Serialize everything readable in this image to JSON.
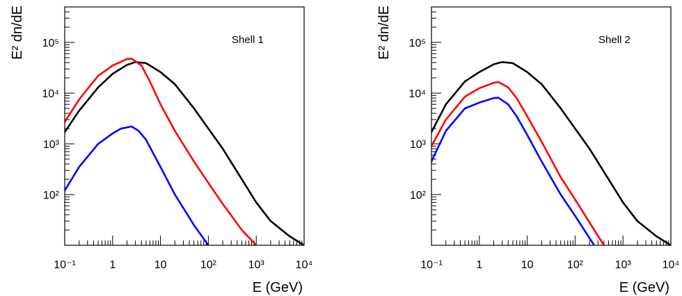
{
  "chart_data": [
    {
      "type": "line",
      "annotation": "Shell 1",
      "xlabel": "E (GeV)",
      "ylabel": "E² dn/dE",
      "xscale": "log",
      "yscale": "log",
      "xlim": [
        0.1,
        10000
      ],
      "ylim": [
        10,
        500000
      ],
      "x_tick_labels": [
        "10⁻¹",
        "1",
        "10",
        "10²",
        "10³",
        "10⁴"
      ],
      "y_tick_labels": [
        "10²",
        "10³",
        "10⁴",
        "10⁵"
      ],
      "series": [
        {
          "color": "#000000",
          "points": [
            [
              0.1,
              1700
            ],
            [
              0.2,
              4500
            ],
            [
              0.5,
              13000
            ],
            [
              1,
              24000
            ],
            [
              2,
              36000
            ],
            [
              3,
              41000
            ],
            [
              5,
              39000
            ],
            [
              10,
              26000
            ],
            [
              20,
              15000
            ],
            [
              50,
              5000
            ],
            [
              100,
              2000
            ],
            [
              200,
              800
            ],
            [
              500,
              200
            ],
            [
              1000,
              70
            ],
            [
              2000,
              30
            ],
            [
              5000,
              15
            ],
            [
              10000,
              10
            ]
          ]
        },
        {
          "color": "#ff0000",
          "points": [
            [
              0.1,
              2700
            ],
            [
              0.2,
              7500
            ],
            [
              0.5,
              22000
            ],
            [
              1,
              35000
            ],
            [
              2,
              47000
            ],
            [
              2.5,
              48000
            ],
            [
              4,
              35000
            ],
            [
              6,
              17000
            ],
            [
              10,
              6000
            ],
            [
              20,
              1800
            ],
            [
              50,
              450
            ],
            [
              100,
              170
            ],
            [
              200,
              65
            ],
            [
              500,
              20
            ],
            [
              1000,
              10
            ]
          ]
        },
        {
          "color": "#0000ff",
          "points": [
            [
              0.1,
              120
            ],
            [
              0.2,
              350
            ],
            [
              0.5,
              1000
            ],
            [
              1,
              1600
            ],
            [
              1.5,
              2000
            ],
            [
              2.5,
              2200
            ],
            [
              3.5,
              1800
            ],
            [
              5,
              1200
            ],
            [
              10,
              350
            ],
            [
              20,
              100
            ],
            [
              50,
              25
            ],
            [
              100,
              10
            ]
          ]
        }
      ]
    },
    {
      "type": "line",
      "annotation": "Shell 2",
      "xlabel": "E (GeV)",
      "ylabel": "E² dn/dE",
      "xscale": "log",
      "yscale": "log",
      "xlim": [
        0.1,
        10000
      ],
      "ylim": [
        10,
        500000
      ],
      "x_tick_labels": [
        "10⁻¹",
        "1",
        "10",
        "10²",
        "10³",
        "10⁴"
      ],
      "y_tick_labels": [
        "10²",
        "10³",
        "10⁴",
        "10⁵"
      ],
      "series": [
        {
          "color": "#000000",
          "points": [
            [
              0.1,
              1700
            ],
            [
              0.2,
              6000
            ],
            [
              0.5,
              17000
            ],
            [
              1,
              26000
            ],
            [
              2,
              37000
            ],
            [
              3,
              41000
            ],
            [
              5,
              39000
            ],
            [
              10,
              26000
            ],
            [
              20,
              15000
            ],
            [
              50,
              5000
            ],
            [
              100,
              2000
            ],
            [
              200,
              800
            ],
            [
              500,
              200
            ],
            [
              1000,
              70
            ],
            [
              2000,
              30
            ],
            [
              5000,
              15
            ],
            [
              10000,
              10
            ]
          ]
        },
        {
          "color": "#ff0000",
          "points": [
            [
              0.1,
              900
            ],
            [
              0.2,
              3000
            ],
            [
              0.5,
              8500
            ],
            [
              1,
              12500
            ],
            [
              2,
              16000
            ],
            [
              2.5,
              16500
            ],
            [
              4,
              13000
            ],
            [
              6,
              8000
            ],
            [
              10,
              3500
            ],
            [
              20,
              1100
            ],
            [
              50,
              220
            ],
            [
              100,
              80
            ],
            [
              200,
              28
            ],
            [
              400,
              10
            ]
          ]
        },
        {
          "color": "#0000ff",
          "points": [
            [
              0.1,
              450
            ],
            [
              0.2,
              1800
            ],
            [
              0.5,
              5000
            ],
            [
              1,
              6500
            ],
            [
              2,
              8000
            ],
            [
              2.5,
              8100
            ],
            [
              4,
              6000
            ],
            [
              6,
              3500
            ],
            [
              10,
              1500
            ],
            [
              20,
              450
            ],
            [
              50,
              100
            ],
            [
              100,
              38
            ],
            [
              250,
              10
            ]
          ]
        }
      ]
    }
  ]
}
